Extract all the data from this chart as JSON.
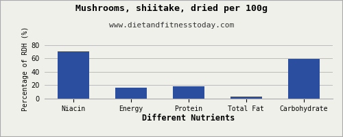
{
  "title": "Mushrooms, shiitake, dried per 100g",
  "subtitle": "www.dietandfitnesstoday.com",
  "xlabel": "Different Nutrients",
  "ylabel": "Percentage of RDH (%)",
  "categories": [
    "Niacin",
    "Energy",
    "Protein",
    "Total Fat",
    "Carbohydrate"
  ],
  "values": [
    71,
    16,
    18,
    3,
    59
  ],
  "bar_color": "#2b4f9e",
  "ylim": [
    0,
    90
  ],
  "yticks": [
    0,
    20,
    40,
    60,
    80
  ],
  "title_fontsize": 9.5,
  "subtitle_fontsize": 8,
  "xlabel_fontsize": 8.5,
  "ylabel_fontsize": 7,
  "tick_fontsize": 7,
  "background_color": "#f0f0eb",
  "plot_bg_color": "#f0f0eb",
  "grid_color": "#bbbbbb",
  "border_color": "#aaaaaa"
}
